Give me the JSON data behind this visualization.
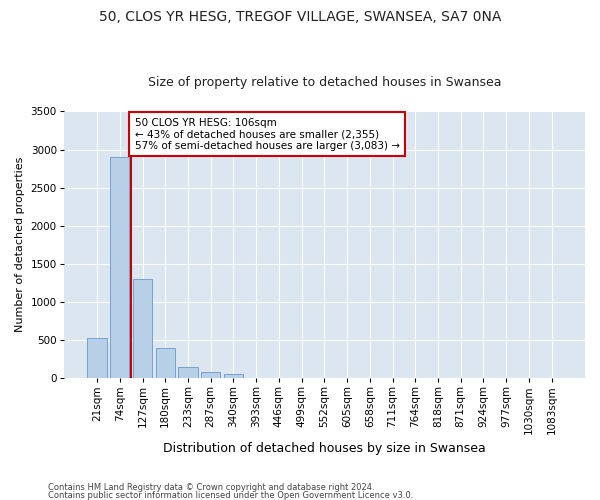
{
  "title1": "50, CLOS YR HESG, TREGOF VILLAGE, SWANSEA, SA7 0NA",
  "title2": "Size of property relative to detached houses in Swansea",
  "xlabel": "Distribution of detached houses by size in Swansea",
  "ylabel": "Number of detached properties",
  "footnote1": "Contains HM Land Registry data © Crown copyright and database right 2024.",
  "footnote2": "Contains public sector information licensed under the Open Government Licence v3.0.",
  "categories": [
    "21sqm",
    "74sqm",
    "127sqm",
    "180sqm",
    "233sqm",
    "287sqm",
    "340sqm",
    "393sqm",
    "446sqm",
    "499sqm",
    "552sqm",
    "605sqm",
    "658sqm",
    "711sqm",
    "764sqm",
    "818sqm",
    "871sqm",
    "924sqm",
    "977sqm",
    "1030sqm",
    "1083sqm"
  ],
  "values": [
    520,
    2900,
    1300,
    400,
    150,
    80,
    60,
    0,
    0,
    0,
    0,
    0,
    0,
    0,
    0,
    0,
    0,
    0,
    0,
    0,
    0
  ],
  "bar_color": "#b8cfe8",
  "bar_edge_color": "#6699cc",
  "vline_x": 1.5,
  "vline_color": "#cc0000",
  "annotation_text": "50 CLOS YR HESG: 106sqm\n← 43% of detached houses are smaller (2,355)\n57% of semi-detached houses are larger (3,083) →",
  "annotation_box_color": "#ffffff",
  "annotation_box_edge": "#cc0000",
  "ylim": [
    0,
    3500
  ],
  "yticks": [
    0,
    500,
    1000,
    1500,
    2000,
    2500,
    3000,
    3500
  ],
  "background_color": "#ffffff",
  "plot_background": "#dce6f0",
  "title1_fontsize": 10,
  "title2_fontsize": 9,
  "xlabel_fontsize": 9,
  "ylabel_fontsize": 8,
  "grid_color": "#ffffff",
  "tick_fontsize": 7.5
}
